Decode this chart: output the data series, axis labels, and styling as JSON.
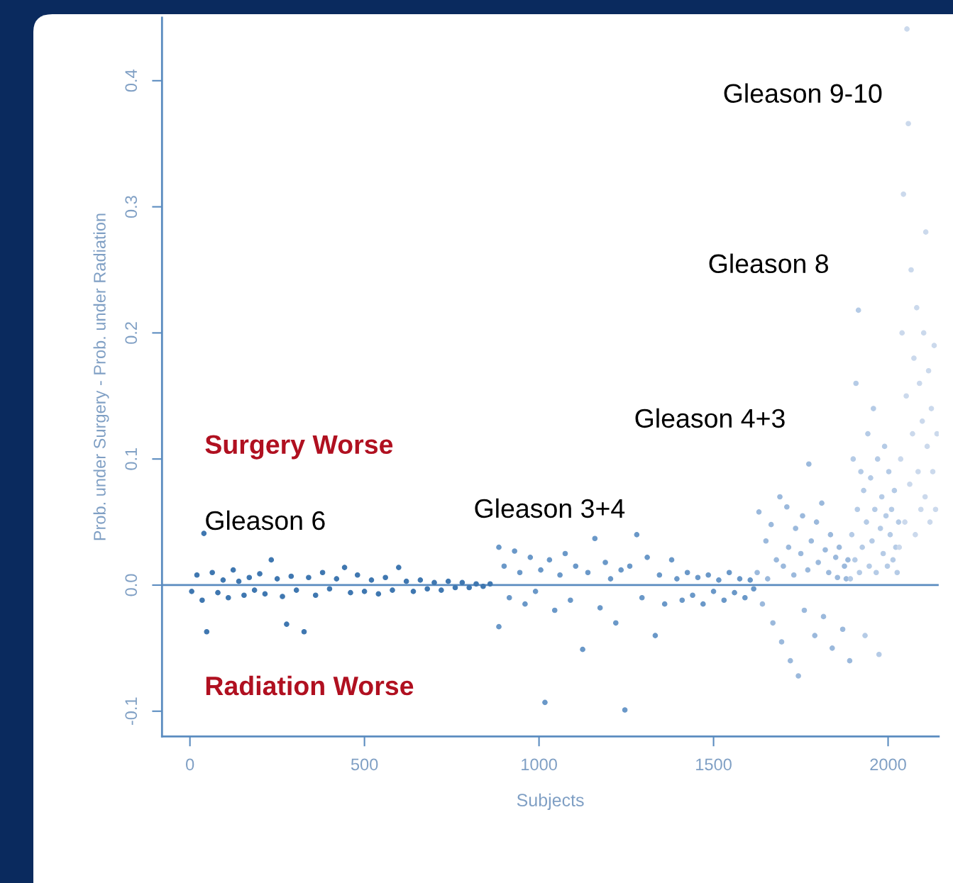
{
  "chart_data": {
    "type": "scatter",
    "xlabel": "Subjects",
    "ylabel": "Prob. under Surgery - Prob. under Radiation",
    "xlim": [
      -80,
      2145
    ],
    "ylim": [
      -0.12,
      0.45
    ],
    "xticks": [
      0,
      500,
      1000,
      1500,
      2000
    ],
    "yticks": [
      -0.1,
      {
        "value": 0,
        "label": "0.0"
      },
      0.1,
      0.2,
      0.3,
      0.4
    ],
    "grid": false,
    "legend": false,
    "marker": "circle",
    "ref_lines": [
      {
        "axis": "y",
        "value": 0,
        "label": null,
        "color": "#5b8cc0"
      }
    ],
    "annotations": [
      "Surgery Worse",
      "Radiation Worse",
      "Gleason 6",
      "Gleason 3+4",
      "Gleason 4+3",
      "Gleason 8",
      "Gleason 9-10"
    ],
    "series": [
      {
        "color": "#3f77b0",
        "x": [
          5,
          20,
          35,
          40,
          48,
          64,
          80,
          95,
          110,
          124,
          140,
          155,
          170,
          185,
          200,
          215,
          233,
          250,
          265,
          277,
          290,
          305,
          327,
          340,
          360,
          380,
          400,
          420,
          443,
          460,
          480,
          500,
          520,
          540,
          560,
          580,
          598,
          620,
          640,
          660,
          680,
          700,
          720,
          740,
          760,
          780,
          800,
          820,
          840,
          860
        ],
        "values": [
          -0.005,
          0.008,
          -0.012,
          0.041,
          -0.037,
          0.01,
          -0.006,
          0.004,
          -0.01,
          0.012,
          0.003,
          -0.008,
          0.006,
          -0.004,
          0.009,
          -0.007,
          0.02,
          0.005,
          -0.009,
          -0.031,
          0.007,
          -0.004,
          -0.037,
          0.006,
          -0.008,
          0.01,
          -0.003,
          0.005,
          0.014,
          -0.006,
          0.008,
          -0.005,
          0.004,
          -0.007,
          0.006,
          -0.004,
          0.014,
          0.003,
          -0.005,
          0.004,
          -0.003,
          0.002,
          -0.004,
          0.003,
          -0.002,
          0.002,
          -0.002,
          0.001,
          -0.001,
          0.001
        ]
      },
      {
        "color": "#6a98c8",
        "x": [
          885,
          885,
          900,
          915,
          930,
          945,
          960,
          975,
          990,
          1005,
          1017,
          1030,
          1045,
          1060,
          1075,
          1090,
          1105,
          1125,
          1140,
          1160,
          1175,
          1190,
          1205,
          1220,
          1235,
          1246,
          1260,
          1280,
          1295,
          1310,
          1333,
          1345,
          1360,
          1380,
          1395,
          1410,
          1425,
          1440,
          1455,
          1470,
          1485,
          1500,
          1515,
          1530,
          1545,
          1560,
          1575,
          1590,
          1605,
          1615
        ],
        "values": [
          0.03,
          -0.033,
          0.015,
          -0.01,
          0.027,
          0.01,
          -0.015,
          0.022,
          -0.005,
          0.012,
          -0.093,
          0.02,
          -0.02,
          0.008,
          0.025,
          -0.012,
          0.015,
          -0.051,
          0.01,
          0.037,
          -0.018,
          0.018,
          0.005,
          -0.03,
          0.012,
          -0.099,
          0.015,
          0.04,
          -0.01,
          0.022,
          -0.04,
          0.008,
          -0.015,
          0.02,
          0.005,
          -0.012,
          0.01,
          -0.008,
          0.006,
          -0.015,
          0.008,
          -0.005,
          0.004,
          -0.012,
          0.01,
          -0.006,
          0.005,
          -0.01,
          0.004,
          -0.003
        ]
      },
      {
        "color": "#9bb9dc",
        "x": [
          1625,
          1630,
          1640,
          1650,
          1655,
          1665,
          1670,
          1680,
          1690,
          1695,
          1700,
          1710,
          1715,
          1720,
          1730,
          1735,
          1743,
          1750,
          1755,
          1760,
          1770,
          1773,
          1780,
          1790,
          1795,
          1800,
          1810,
          1815,
          1820,
          1830,
          1835,
          1840,
          1850,
          1855,
          1860,
          1870,
          1875,
          1880,
          1885,
          1890
        ],
        "values": [
          0.01,
          0.058,
          -0.015,
          0.035,
          0.005,
          0.048,
          -0.03,
          0.02,
          0.07,
          -0.045,
          0.015,
          0.062,
          0.03,
          -0.06,
          0.008,
          0.045,
          -0.072,
          0.025,
          0.055,
          -0.02,
          0.012,
          0.096,
          0.035,
          -0.04,
          0.05,
          0.018,
          0.065,
          -0.025,
          0.028,
          0.01,
          0.04,
          -0.05,
          0.022,
          0.006,
          0.03,
          -0.035,
          0.015,
          0.005,
          0.02,
          -0.06
        ]
      },
      {
        "color": "#b5cbe6",
        "x": [
          1892,
          1896,
          1900,
          1905,
          1908,
          1912,
          1915,
          1918,
          1922,
          1926,
          1930,
          1934,
          1938,
          1942,
          1946,
          1950,
          1954,
          1958,
          1962,
          1966,
          1970,
          1974,
          1978,
          1982,
          1986,
          1990,
          1994,
          1998,
          2002,
          2006,
          2010,
          2014,
          2018,
          2022,
          2026,
          2030
        ],
        "values": [
          0.005,
          0.04,
          0.1,
          0.02,
          0.16,
          0.06,
          0.218,
          0.01,
          0.09,
          0.03,
          0.075,
          -0.04,
          0.05,
          0.12,
          0.015,
          0.085,
          0.035,
          0.14,
          0.06,
          0.01,
          0.1,
          -0.055,
          0.045,
          0.07,
          0.025,
          0.11,
          0.055,
          0.015,
          0.09,
          0.04,
          0.06,
          0.02,
          0.075,
          0.03,
          0.01,
          0.05
        ]
      },
      {
        "color": "#cbd9ec",
        "x": [
          2032,
          2036,
          2040,
          2044,
          2048,
          2052,
          2054,
          2058,
          2062,
          2066,
          2070,
          2074,
          2078,
          2082,
          2086,
          2090,
          2094,
          2098,
          2102,
          2106,
          2108,
          2112,
          2116,
          2120,
          2124,
          2128,
          2132,
          2136,
          2140
        ],
        "values": [
          0.03,
          0.1,
          0.2,
          0.31,
          0.05,
          0.15,
          0.441,
          0.366,
          0.08,
          0.25,
          0.12,
          0.18,
          0.04,
          0.22,
          0.09,
          0.16,
          0.06,
          0.13,
          0.2,
          0.07,
          0.28,
          0.11,
          0.17,
          0.05,
          0.14,
          0.09,
          0.19,
          0.06,
          0.12
        ]
      }
    ]
  }
}
